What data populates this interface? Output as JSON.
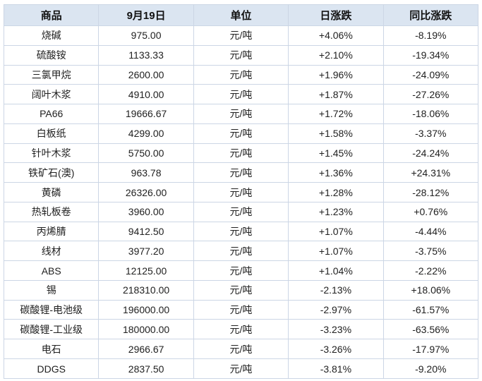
{
  "colors": {
    "up": "#ff0000",
    "down": "#00a050",
    "header_bg": "#dbe5f1",
    "border": "#ccd6e5",
    "text": "#212121"
  },
  "table": {
    "date_column_label": "9月19日",
    "headers": [
      "商品",
      "9月19日",
      "单位",
      "日涨跌",
      "同比涨跌"
    ],
    "rows": [
      {
        "name": "烧碱",
        "price": "975.00",
        "unit": "元/吨",
        "day_change": "+4.06%",
        "yoy_change": "-8.19%"
      },
      {
        "name": "硫酸铵",
        "price": "1133.33",
        "unit": "元/吨",
        "day_change": "+2.10%",
        "yoy_change": "-19.34%"
      },
      {
        "name": "三氯甲烷",
        "price": "2600.00",
        "unit": "元/吨",
        "day_change": "+1.96%",
        "yoy_change": "-24.09%"
      },
      {
        "name": "阔叶木浆",
        "price": "4910.00",
        "unit": "元/吨",
        "day_change": "+1.87%",
        "yoy_change": "-27.26%"
      },
      {
        "name": "PA66",
        "price": "19666.67",
        "unit": "元/吨",
        "day_change": "+1.72%",
        "yoy_change": "-18.06%"
      },
      {
        "name": "白板纸",
        "price": "4299.00",
        "unit": "元/吨",
        "day_change": "+1.58%",
        "yoy_change": "-3.37%"
      },
      {
        "name": "针叶木浆",
        "price": "5750.00",
        "unit": "元/吨",
        "day_change": "+1.45%",
        "yoy_change": "-24.24%"
      },
      {
        "name": "铁矿石(澳)",
        "price": "963.78",
        "unit": "元/吨",
        "day_change": "+1.36%",
        "yoy_change": "+24.31%"
      },
      {
        "name": "黄磷",
        "price": "26326.00",
        "unit": "元/吨",
        "day_change": "+1.28%",
        "yoy_change": "-28.12%"
      },
      {
        "name": "热轧板卷",
        "price": "3960.00",
        "unit": "元/吨",
        "day_change": "+1.23%",
        "yoy_change": "+0.76%"
      },
      {
        "name": "丙烯腈",
        "price": "9412.50",
        "unit": "元/吨",
        "day_change": "+1.07%",
        "yoy_change": "-4.44%"
      },
      {
        "name": "线材",
        "price": "3977.20",
        "unit": "元/吨",
        "day_change": "+1.07%",
        "yoy_change": "-3.75%"
      },
      {
        "name": "ABS",
        "price": "12125.00",
        "unit": "元/吨",
        "day_change": "+1.04%",
        "yoy_change": "-2.22%"
      },
      {
        "name": "锡",
        "price": "218310.00",
        "unit": "元/吨",
        "day_change": "-2.13%",
        "yoy_change": "+18.06%"
      },
      {
        "name": "碳酸锂-电池级",
        "price": "196000.00",
        "unit": "元/吨",
        "day_change": "-2.97%",
        "yoy_change": "-61.57%"
      },
      {
        "name": "碳酸锂-工业级",
        "price": "180000.00",
        "unit": "元/吨",
        "day_change": "-3.23%",
        "yoy_change": "-63.56%"
      },
      {
        "name": "电石",
        "price": "2966.67",
        "unit": "元/吨",
        "day_change": "-3.26%",
        "yoy_change": "-17.97%"
      },
      {
        "name": "DDGS",
        "price": "2837.50",
        "unit": "元/吨",
        "day_change": "-3.81%",
        "yoy_change": "-9.20%"
      }
    ]
  }
}
